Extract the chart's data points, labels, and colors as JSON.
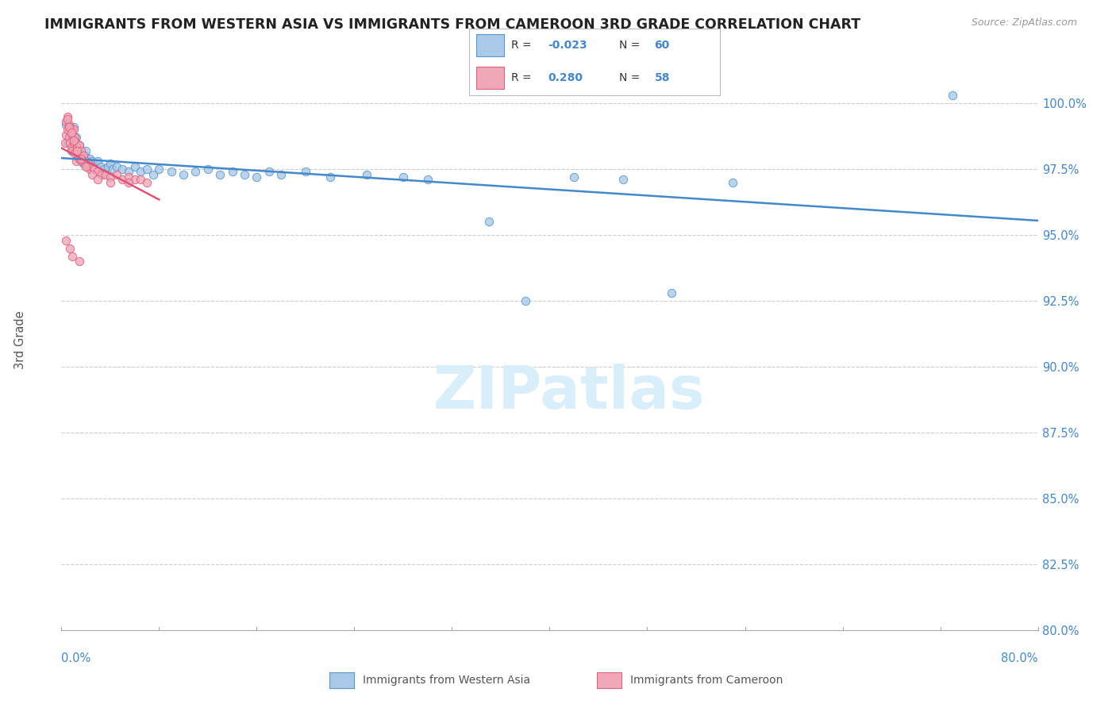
{
  "title": "IMMIGRANTS FROM WESTERN ASIA VS IMMIGRANTS FROM CAMEROON 3RD GRADE CORRELATION CHART",
  "source": "Source: ZipAtlas.com",
  "ylabel_label": "3rd Grade",
  "xmin": 0.0,
  "xmax": 80.0,
  "ymin": 80.0,
  "ymax": 101.5,
  "yticks": [
    80.0,
    82.5,
    85.0,
    87.5,
    90.0,
    92.5,
    95.0,
    97.5,
    100.0
  ],
  "blue_color": "#aac8e8",
  "pink_color": "#f0a8b8",
  "blue_edge_color": "#5599cc",
  "pink_edge_color": "#e06080",
  "blue_line_color": "#4488cc",
  "pink_line_color": "#dd5577",
  "grid_color": "#cccccc",
  "title_color": "#222222",
  "axis_label_color": "#4488cc",
  "watermark_color": "#d8eef8",
  "blue_scatter_x": [
    0.4,
    0.5,
    0.6,
    0.7,
    0.8,
    0.9,
    1.0,
    1.1,
    1.2,
    1.3,
    1.4,
    1.5,
    1.6,
    1.7,
    1.8,
    1.9,
    2.0,
    2.1,
    2.2,
    2.3,
    2.4,
    2.5,
    2.6,
    2.8,
    3.0,
    3.2,
    3.5,
    3.8,
    4.0,
    4.2,
    4.5,
    5.0,
    5.5,
    6.0,
    6.5,
    7.0,
    7.5,
    8.0,
    9.0,
    10.0,
    11.0,
    12.0,
    13.0,
    14.0,
    15.0,
    16.0,
    17.0,
    18.0,
    20.0,
    22.0,
    25.0,
    28.0,
    30.0,
    35.0,
    38.0,
    42.0,
    46.0,
    50.0,
    55.0,
    73.0
  ],
  "blue_scatter_y": [
    99.2,
    98.5,
    99.0,
    98.8,
    98.2,
    98.6,
    99.1,
    98.3,
    98.7,
    98.0,
    97.9,
    98.4,
    97.8,
    98.1,
    97.7,
    98.0,
    98.2,
    97.8,
    97.6,
    97.9,
    97.7,
    97.8,
    97.7,
    97.6,
    97.8,
    97.6,
    97.5,
    97.6,
    97.7,
    97.5,
    97.6,
    97.5,
    97.4,
    97.6,
    97.4,
    97.5,
    97.3,
    97.5,
    97.4,
    97.3,
    97.4,
    97.5,
    97.3,
    97.4,
    97.3,
    97.2,
    97.4,
    97.3,
    97.4,
    97.2,
    97.3,
    97.2,
    97.1,
    95.5,
    92.5,
    97.2,
    97.1,
    92.8,
    97.0,
    100.3
  ],
  "pink_scatter_x": [
    0.3,
    0.4,
    0.4,
    0.5,
    0.5,
    0.6,
    0.6,
    0.7,
    0.7,
    0.8,
    0.8,
    0.9,
    0.9,
    1.0,
    1.0,
    1.1,
    1.1,
    1.2,
    1.2,
    1.3,
    1.4,
    1.5,
    1.5,
    1.6,
    1.7,
    1.8,
    1.9,
    2.0,
    2.1,
    2.2,
    2.3,
    2.5,
    2.7,
    3.0,
    3.3,
    3.6,
    4.0,
    4.5,
    5.0,
    5.5,
    6.0,
    6.5,
    7.0,
    0.5,
    0.6,
    0.8,
    1.0,
    1.3,
    1.6,
    2.0,
    2.5,
    3.0,
    4.0,
    5.5,
    0.4,
    0.7,
    0.9,
    1.5
  ],
  "pink_scatter_y": [
    98.5,
    99.3,
    98.8,
    99.5,
    99.0,
    99.2,
    98.7,
    99.1,
    98.5,
    99.0,
    98.3,
    98.8,
    98.2,
    99.0,
    98.5,
    98.7,
    98.1,
    98.5,
    97.8,
    98.3,
    98.0,
    98.4,
    97.9,
    98.2,
    97.8,
    98.0,
    97.7,
    97.8,
    97.6,
    97.7,
    97.5,
    97.6,
    97.5,
    97.4,
    97.3,
    97.3,
    97.2,
    97.3,
    97.1,
    97.2,
    97.1,
    97.1,
    97.0,
    99.4,
    99.1,
    98.9,
    98.6,
    98.2,
    97.9,
    97.6,
    97.3,
    97.1,
    97.0,
    97.0,
    94.8,
    94.5,
    94.2,
    94.0
  ]
}
